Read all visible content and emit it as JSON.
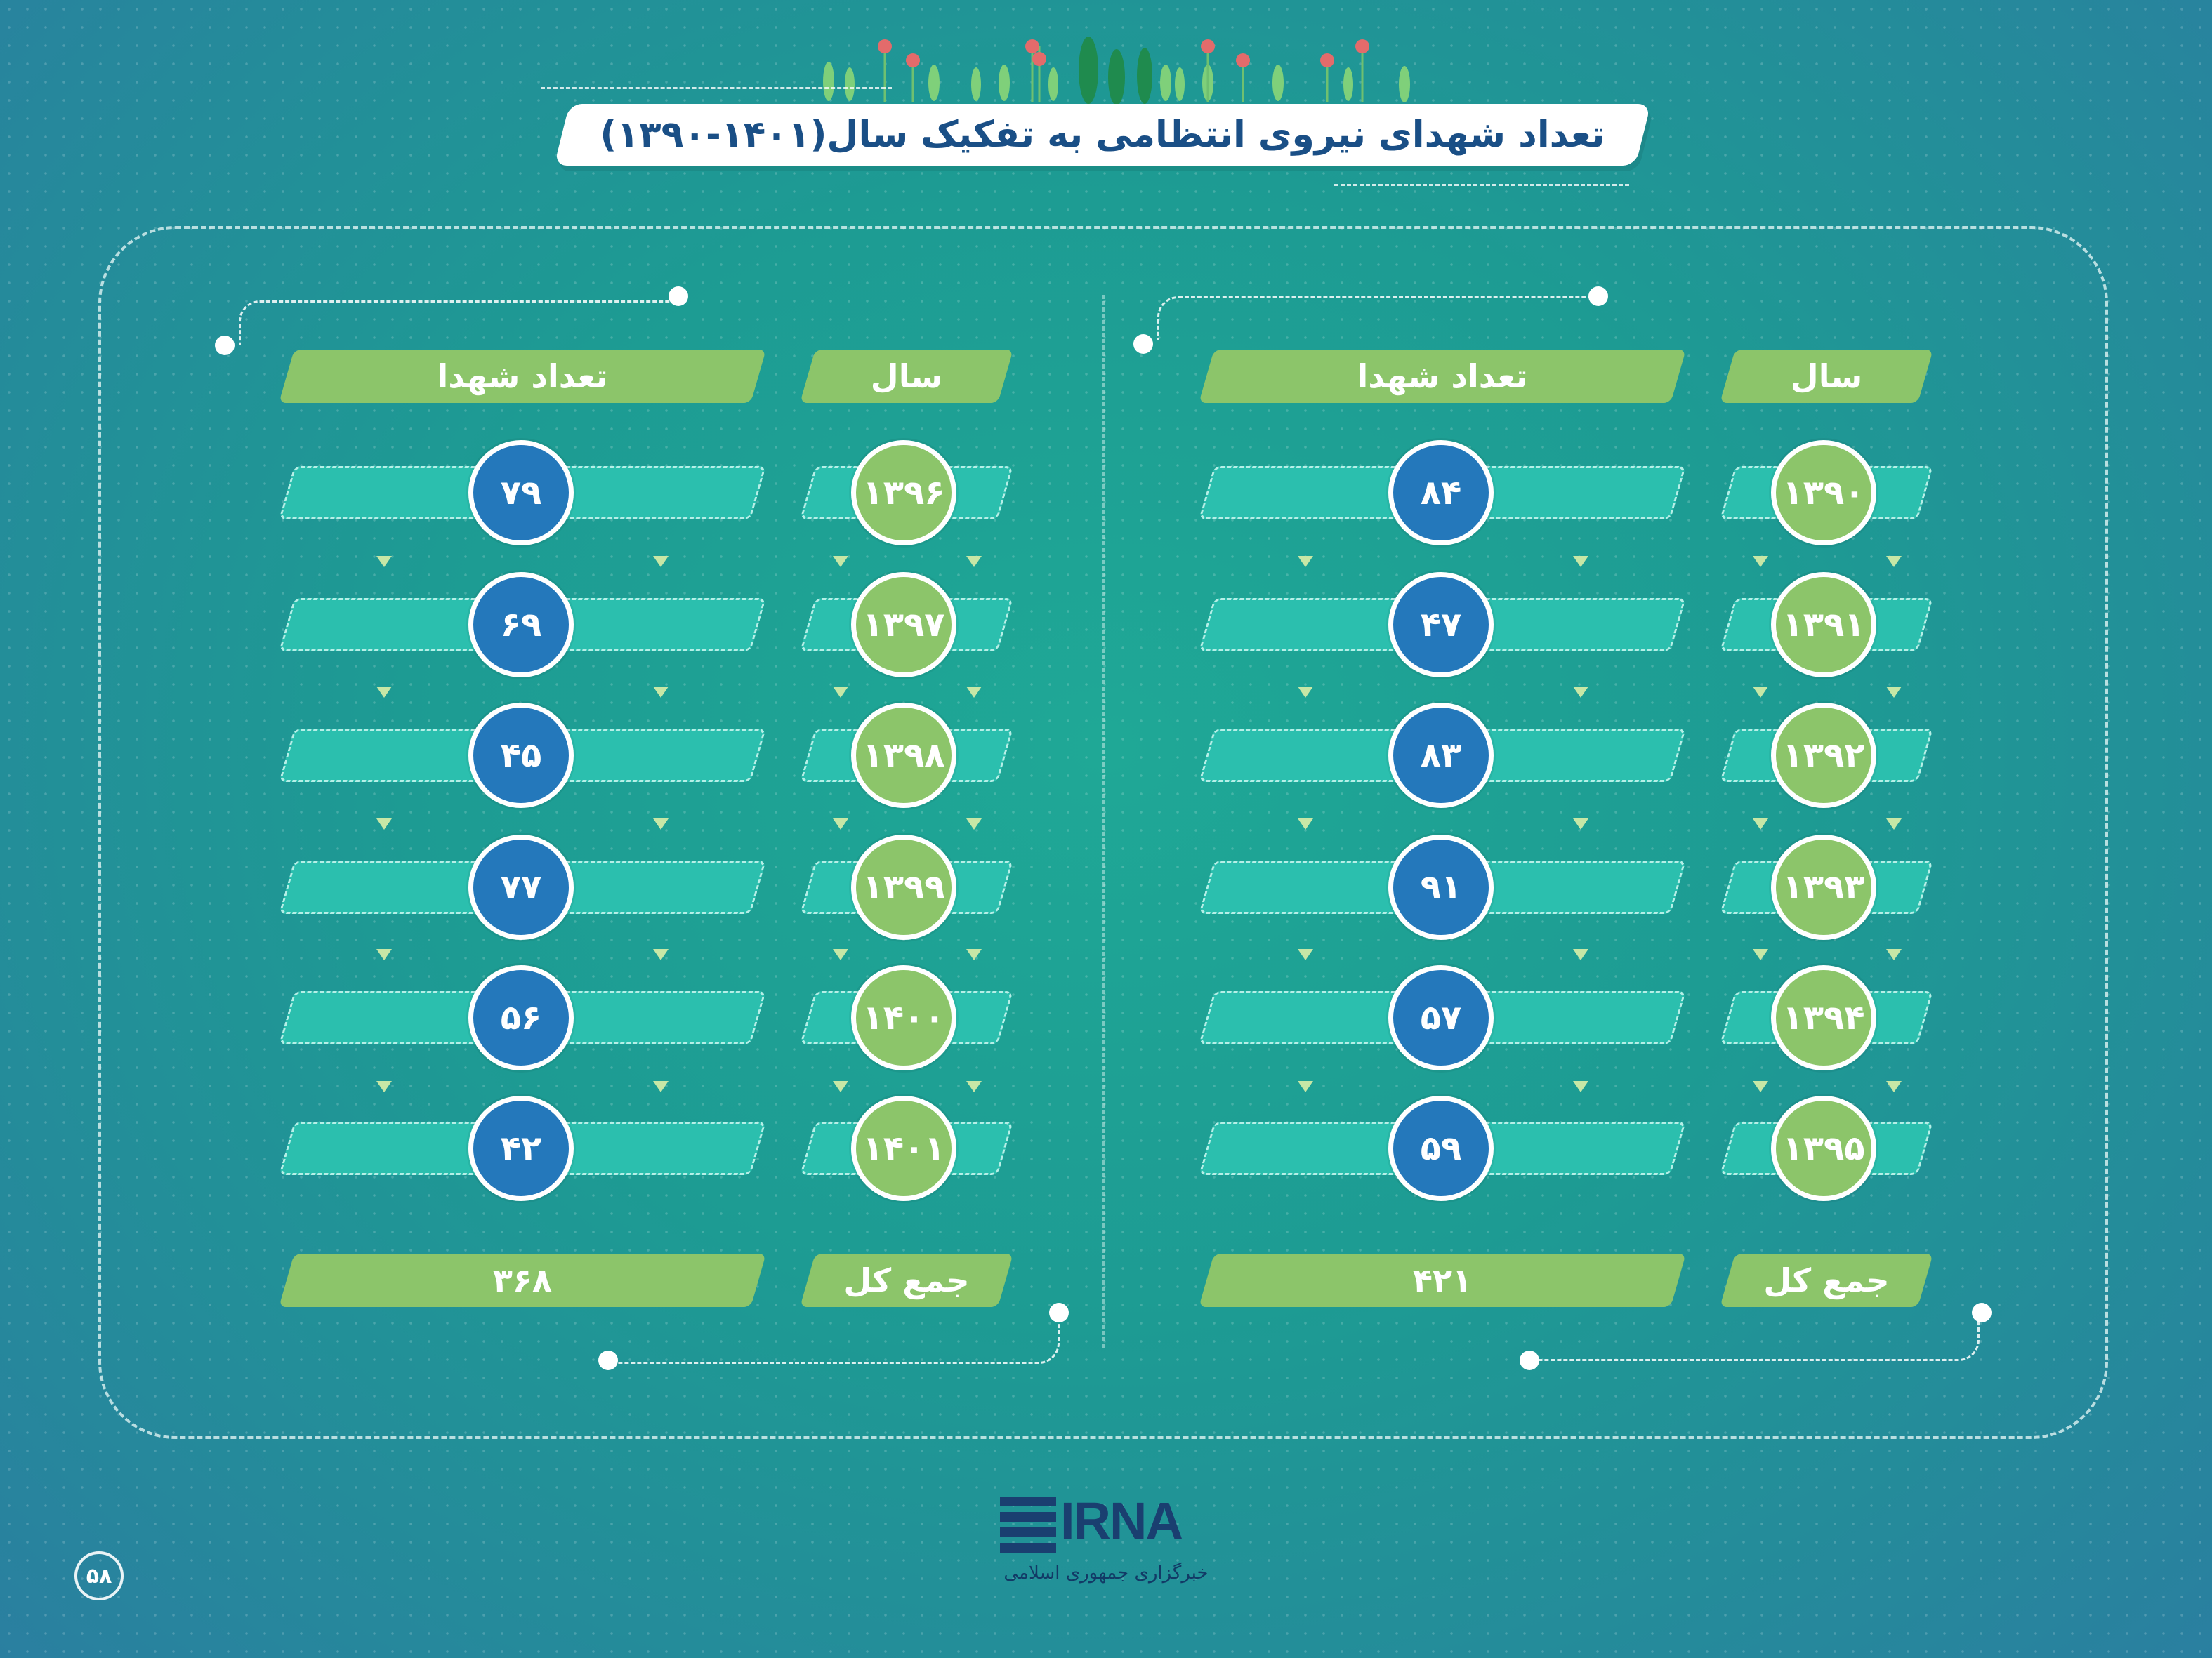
{
  "title": "تعداد شهدای نیروی انتظامی به تفکیک سال(۱۴۰۱-۱۳۹۰)",
  "colors": {
    "accent_green": "#8cc56a",
    "accent_blue": "#2478bb",
    "title_text": "#1a4f86",
    "bar_teal": "#2bbfae"
  },
  "right_table": {
    "year_header": "سال",
    "count_header": "تعداد شهدا",
    "rows": [
      {
        "year": "۱۳۹۰",
        "count": "۸۴"
      },
      {
        "year": "۱۳۹۱",
        "count": "۴۷"
      },
      {
        "year": "۱۳۹۲",
        "count": "۸۳"
      },
      {
        "year": "۱۳۹۳",
        "count": "۹۱"
      },
      {
        "year": "۱۳۹۴",
        "count": "۵۷"
      },
      {
        "year": "۱۳۹۵",
        "count": "۵۹"
      }
    ],
    "total_label": "جمع کل",
    "total_value": "۴۲۱"
  },
  "left_table": {
    "year_header": "سال",
    "count_header": "تعداد شهدا",
    "rows": [
      {
        "year": "۱۳۹۶",
        "count": "۷۹"
      },
      {
        "year": "۱۳۹۷",
        "count": "۶۹"
      },
      {
        "year": "۱۳۹۸",
        "count": "۴۵"
      },
      {
        "year": "۱۳۹۹",
        "count": "۷۷"
      },
      {
        "year": "۱۴۰۰",
        "count": "۵۶"
      },
      {
        "year": "۱۴۰۱",
        "count": "۴۲"
      }
    ],
    "total_label": "جمع کل",
    "total_value": "۳۶۸"
  },
  "logo": {
    "name": "IRNA",
    "subtitle": "خبرگزاری جمهوری اسلامی"
  },
  "page_number": "۵۸"
}
